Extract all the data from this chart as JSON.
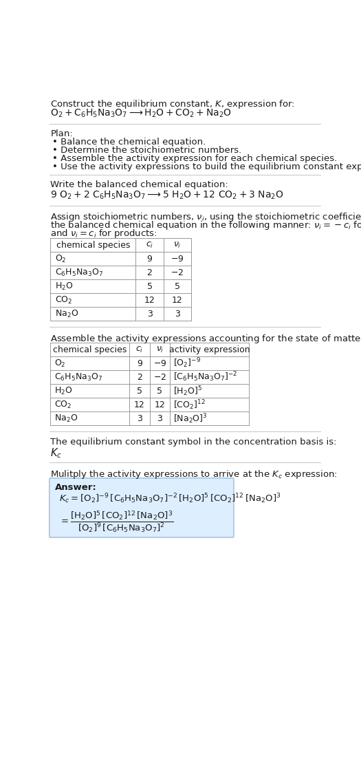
{
  "bg_color": "#ffffff",
  "text_color": "#1a1a1a",
  "separator_color": "#bbbbbb",
  "table_line_color": "#999999",
  "answer_box_color": "#ddeeff",
  "answer_box_edge": "#99bbdd",
  "title_line1": "Construct the equilibrium constant, $K$, expression for:",
  "reaction_unbalanced": "$\\mathrm{O_2 + C_6H_5Na_3O_7 \\longrightarrow H_2O + CO_2 + Na_2O}$",
  "plan_header": "Plan:",
  "plan_items": [
    "Balance the chemical equation.",
    "Determine the stoichiometric numbers.",
    "Assemble the activity expression for each chemical species.",
    "Use the activity expressions to build the equilibrium constant expression."
  ],
  "balanced_header": "Write the balanced chemical equation:",
  "reaction_balanced": "$\\mathrm{9\\ O_2 + 2\\ C_6H_5Na_3O_7 \\longrightarrow 5\\ H_2O + 12\\ CO_2 + 3\\ Na_2O}$",
  "stoich_intro": "Assign stoichiometric numbers, $\\nu_i$, using the stoichiometric coefficients, $c_i$, from the balanced chemical equation in the following manner: $\\nu_i = -c_i$ for reactants and $\\nu_i = c_i$ for products:",
  "table1_col_headers": [
    "chemical species",
    "$c_i$",
    "$\\nu_i$"
  ],
  "table1_rows": [
    [
      "$\\mathrm{O_2}$",
      "9",
      "$-9$"
    ],
    [
      "$\\mathrm{C_6H_5Na_3O_7}$",
      "2",
      "$-2$"
    ],
    [
      "$\\mathrm{H_2O}$",
      "5",
      "5"
    ],
    [
      "$\\mathrm{CO_2}$",
      "12",
      "12"
    ],
    [
      "$\\mathrm{Na_2O}$",
      "3",
      "3"
    ]
  ],
  "activity_intro": "Assemble the activity expressions accounting for the state of matter and $\\nu_i$:",
  "table2_col_headers": [
    "chemical species",
    "$c_i$",
    "$\\nu_i$",
    "activity expression"
  ],
  "table2_rows": [
    [
      "$\\mathrm{O_2}$",
      "9",
      "$-9$",
      "$[\\mathrm{O_2}]^{-9}$"
    ],
    [
      "$\\mathrm{C_6H_5Na_3O_7}$",
      "2",
      "$-2$",
      "$[\\mathrm{C_6H_5Na_3O_7}]^{-2}$"
    ],
    [
      "$\\mathrm{H_2O}$",
      "5",
      "5",
      "$[\\mathrm{H_2O}]^{5}$"
    ],
    [
      "$\\mathrm{CO_2}$",
      "12",
      "12",
      "$[\\mathrm{CO_2}]^{12}$"
    ],
    [
      "$\\mathrm{Na_2O}$",
      "3",
      "3",
      "$[\\mathrm{Na_2O}]^{3}$"
    ]
  ],
  "kc_intro": "The equilibrium constant symbol in the concentration basis is:",
  "kc_symbol": "$K_c$",
  "multiply_intro": "Mulitply the activity expressions to arrive at the $K_c$ expression:",
  "answer_label": "Answer:",
  "kc_eq_line1": "$K_c = [\\mathrm{O_2}]^{-9}\\,[\\mathrm{C_6H_5Na_3O_7}]^{-2}\\,[\\mathrm{H_2O}]^{5}\\,[\\mathrm{CO_2}]^{12}\\,[\\mathrm{Na_2O}]^{3}$",
  "kc_eq_line2": "$= \\dfrac{[\\mathrm{H_2O}]^{5}\\,[\\mathrm{CO_2}]^{12}\\,[\\mathrm{Na_2O}]^{3}}{[\\mathrm{O_2}]^{9}\\,[\\mathrm{C_6H_5Na_3O_7}]^{2}}$"
}
